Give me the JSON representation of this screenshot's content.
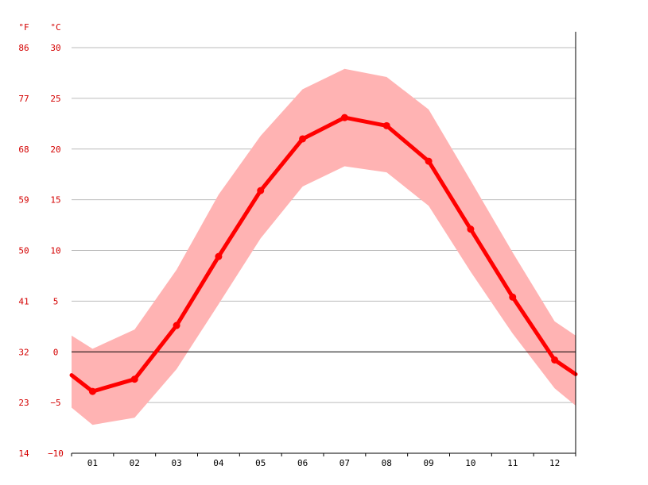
{
  "chart_data": {
    "type": "line",
    "title": "",
    "xlabel": "",
    "ylabel": "",
    "units": {
      "fahrenheit": "°F",
      "celsius": "°C"
    },
    "categories": [
      "01",
      "02",
      "03",
      "04",
      "05",
      "06",
      "07",
      "08",
      "09",
      "10",
      "11",
      "12"
    ],
    "ylim": [
      -10,
      30
    ],
    "yticks_celsius": [
      "30",
      "25",
      "20",
      "15",
      "10",
      "5",
      "0",
      "−5",
      "−10"
    ],
    "yticks_fahrenheit": [
      "86",
      "77",
      "68",
      "59",
      "50",
      "41",
      "32",
      "23",
      "14"
    ],
    "grid": true,
    "series": [
      {
        "values": [
          -3.9,
          -2.7,
          2.6,
          9.4,
          15.9,
          21.0,
          23.1,
          22.3,
          18.8,
          12.1,
          5.4,
          -0.8
        ],
        "color": "#ff0000"
      },
      {
        "values": [
          0.3,
          2.2,
          8.1,
          15.5,
          21.3,
          25.9,
          27.9,
          27.1,
          23.9,
          16.9,
          9.8,
          3.0
        ],
        "color": "#ffb3b3"
      },
      {
        "values": [
          -7.2,
          -6.5,
          -1.7,
          4.7,
          11.2,
          16.3,
          18.3,
          17.7,
          14.4,
          7.9,
          1.8,
          -3.6
        ],
        "color": "#ffb3b3"
      }
    ],
    "edge_values": {
      "mean": [
        -2.3,
        -2.2
      ],
      "max": [
        1.6,
        1.6
      ],
      "min": [
        -5.5,
        -5.3
      ]
    },
    "colors": {
      "axis_text": "#d40000",
      "grid": "#bbbbbb",
      "zero_line": "#000000",
      "mean_line": "#ff0000",
      "band": "#ffb3b3"
    }
  }
}
